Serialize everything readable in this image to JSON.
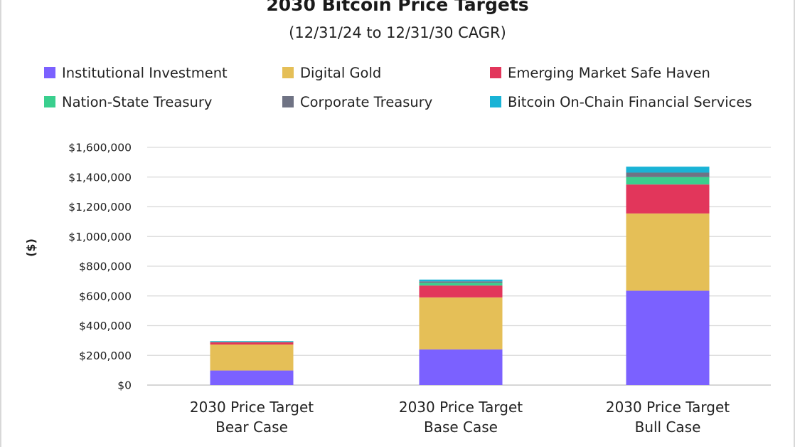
{
  "chart_data": {
    "type": "bar",
    "stacked": true,
    "title": "2030 Bitcoin Price Targets",
    "subtitle": "(12/31/24 to 12/31/30 CAGR)",
    "ylabel": "($)",
    "xlabel": "",
    "ylim": [
      0,
      1600000
    ],
    "yticks": [
      0,
      200000,
      400000,
      600000,
      800000,
      1000000,
      1200000,
      1400000,
      1600000
    ],
    "ytick_labels": [
      "$0",
      "$200,000",
      "$400,000",
      "$600,000",
      "$800,000",
      "$1,000,000",
      "$1,200,000",
      "$1,400,000",
      "$1,600,000"
    ],
    "grid": true,
    "legend_position": "top",
    "categories": [
      [
        "2030 Price Target",
        "Bear Case"
      ],
      [
        "2030 Price Target",
        "Base Case"
      ],
      [
        "2030 Price Target",
        "Bull Case"
      ]
    ],
    "series": [
      {
        "name": "Institutional Investment",
        "color": "#7B61FF",
        "values": [
          98000,
          240000,
          635000
        ]
      },
      {
        "name": "Digital Gold",
        "color": "#E5BF57",
        "values": [
          175000,
          350000,
          520000
        ]
      },
      {
        "name": "Emerging Market Safe Haven",
        "color": "#E2365B",
        "values": [
          15000,
          80000,
          195000
        ]
      },
      {
        "name": "Nation-State Treasury",
        "color": "#3ACF8E",
        "values": [
          2000,
          18000,
          50000
        ]
      },
      {
        "name": "Corporate Treasury",
        "color": "#6F7384",
        "values": [
          2000,
          10000,
          30000
        ]
      },
      {
        "name": "Bitcoin On-Chain Financial Services",
        "color": "#19B3D6",
        "values": [
          4000,
          12000,
          40000
        ]
      }
    ]
  }
}
